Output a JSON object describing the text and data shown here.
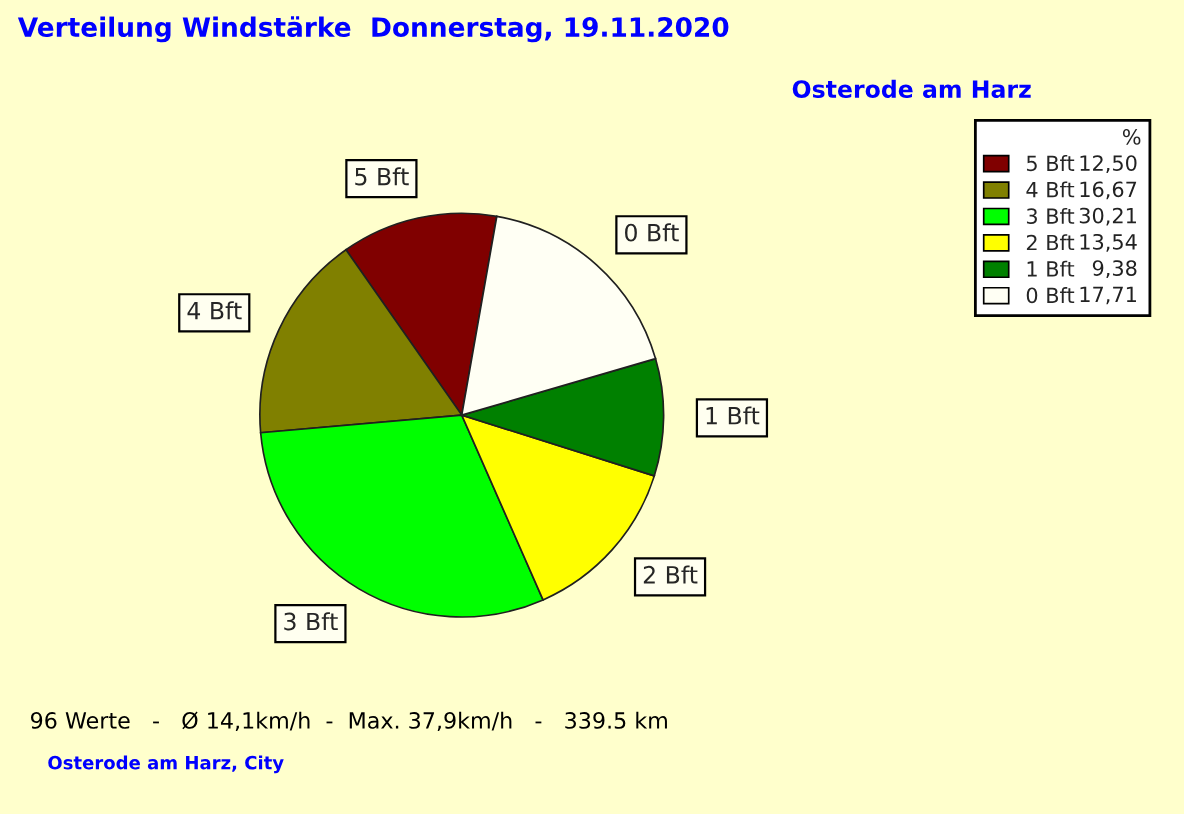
{
  "chart_data": {
    "type": "pie",
    "title": "Verteilung Windstärke  Donnerstag, 19.11.2020",
    "subtitle": "Osterode am Harz",
    "categories": [
      "5 Bft",
      "4 Bft",
      "3 Bft",
      "2 Bft",
      "1 Bft",
      "0 Bft"
    ],
    "values": [
      12.5,
      16.67,
      30.21,
      13.54,
      9.38,
      17.71
    ],
    "value_labels": [
      "12,50",
      "16,67",
      "30,21",
      "13,54",
      "9,38",
      "17,71"
    ],
    "colors": [
      "#800000",
      "#808000",
      "#00ff00",
      "#ffff00",
      "#008000",
      "#fffff4"
    ],
    "legend": "top right",
    "legend_title": "%",
    "annotations": [
      "96 Werte   -   Ø 14,1km/h  -  Max. 37,9km/h   -   339.5 km",
      "Osterode am Harz, City"
    ]
  }
}
